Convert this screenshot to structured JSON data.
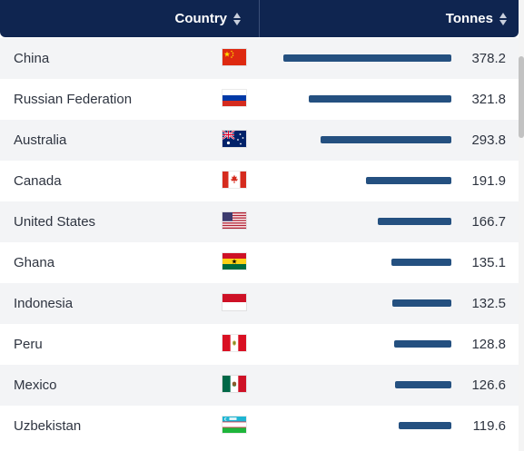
{
  "header": {
    "country_label": "Country",
    "tonnes_label": "Tonnes",
    "background": "#0f2550"
  },
  "bar_color": "#245080",
  "bar_max_value": 378.2,
  "rows": [
    {
      "country": "China",
      "value": "378.2",
      "num": 378.2,
      "flag": "china-flag-icon"
    },
    {
      "country": "Russian Federation",
      "value": "321.8",
      "num": 321.8,
      "flag": "russia-flag-icon"
    },
    {
      "country": "Australia",
      "value": "293.8",
      "num": 293.8,
      "flag": "australia-flag-icon"
    },
    {
      "country": "Canada",
      "value": "191.9",
      "num": 191.9,
      "flag": "canada-flag-icon"
    },
    {
      "country": "United States",
      "value": "166.7",
      "num": 166.7,
      "flag": "usa-flag-icon"
    },
    {
      "country": "Ghana",
      "value": "135.1",
      "num": 135.1,
      "flag": "ghana-flag-icon"
    },
    {
      "country": "Indonesia",
      "value": "132.5",
      "num": 132.5,
      "flag": "indonesia-flag-icon"
    },
    {
      "country": "Peru",
      "value": "128.8",
      "num": 128.8,
      "flag": "peru-flag-icon"
    },
    {
      "country": "Mexico",
      "value": "126.6",
      "num": 126.6,
      "flag": "mexico-flag-icon"
    },
    {
      "country": "Uzbekistan",
      "value": "119.6",
      "num": 119.6,
      "flag": "uzbekistan-flag-icon"
    }
  ]
}
